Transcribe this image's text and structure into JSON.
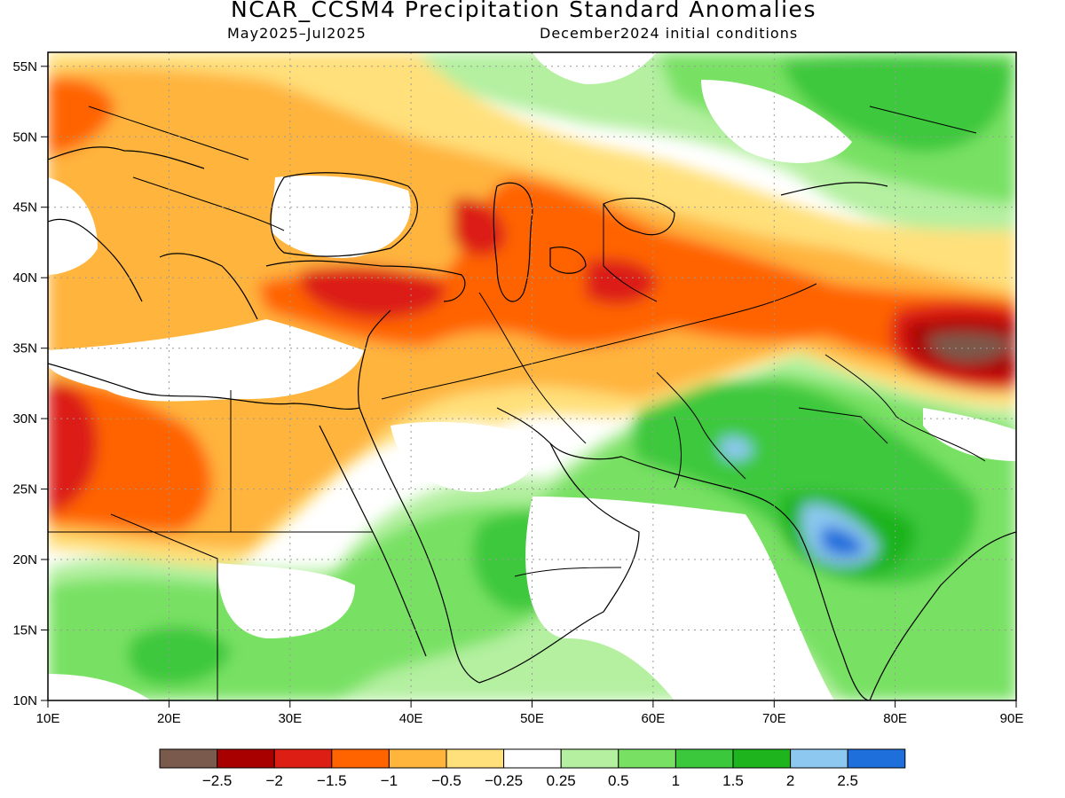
{
  "title": "NCAR_CCSM4 Precipitation Standard Anomalies",
  "subtitle_left": "May2025–Jul2025",
  "subtitle_right": "December2024 initial conditions",
  "lat_ticks": [
    "10N",
    "15N",
    "20N",
    "25N",
    "30N",
    "35N",
    "40N",
    "45N",
    "50N",
    "55N"
  ],
  "lon_ticks": [
    "10E",
    "20E",
    "30E",
    "40E",
    "50E",
    "60E",
    "70E",
    "80E",
    "90E"
  ],
  "lat_range": [
    10,
    56
  ],
  "lon_range": [
    10,
    90
  ],
  "colorbar": {
    "colors": [
      "#7a5a4c",
      "#a80000",
      "#dc1e14",
      "#ff6400",
      "#ffb43c",
      "#ffe07a",
      "#ffffff",
      "#b4f0a0",
      "#78e164",
      "#3cc83c",
      "#1eb41e",
      "#8cc8f0",
      "#1e6edc"
    ],
    "labels": [
      "−2.5",
      "−2",
      "−1.5",
      "−1",
      "−0.5",
      "−0.25",
      "0.25",
      "0.5",
      "1",
      "1.5",
      "2",
      "2.5"
    ]
  },
  "anomaly_regions": [
    {
      "level": "-1.5",
      "color": "#dc1e14",
      "lon": [
        12,
        30
      ],
      "lat": [
        24,
        33
      ]
    },
    {
      "level": "-1",
      "color": "#ff6400",
      "lon": [
        28,
        75
      ],
      "lat": [
        36,
        44
      ]
    },
    {
      "level": "-1.5",
      "color": "#dc1e14",
      "lon": [
        32,
        45
      ],
      "lat": [
        37,
        40
      ]
    },
    {
      "level": "-1.5",
      "color": "#dc1e14",
      "lon": [
        55,
        62
      ],
      "lat": [
        37,
        42
      ]
    },
    {
      "level": "-2",
      "color": "#a80000",
      "lon": [
        80,
        90
      ],
      "lat": [
        33,
        37
      ]
    },
    {
      "level": "-2.5",
      "color": "#7a5a4c",
      "lon": [
        83,
        90
      ],
      "lat": [
        34,
        36
      ]
    },
    {
      "level": "1",
      "color": "#78e164",
      "lon": [
        62,
        90
      ],
      "lat": [
        15,
        33
      ]
    },
    {
      "level": "1.5",
      "color": "#3cc83c",
      "lon": [
        68,
        82
      ],
      "lat": [
        18,
        30
      ]
    },
    {
      "level": "2.5",
      "color": "#1e6edc",
      "lon": [
        73,
        77
      ],
      "lat": [
        20,
        22
      ]
    },
    {
      "level": "1",
      "color": "#78e164",
      "lon": [
        10,
        35
      ],
      "lat": [
        10,
        20
      ]
    },
    {
      "level": "1",
      "color": "#78e164",
      "lon": [
        65,
        90
      ],
      "lat": [
        48,
        56
      ]
    }
  ]
}
